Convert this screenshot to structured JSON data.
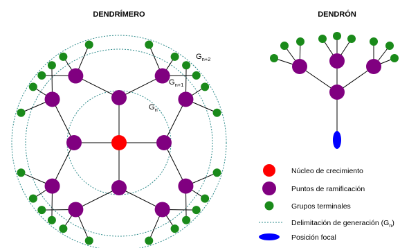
{
  "dendrimer": {
    "title": "DENDRÍMERO",
    "generations": [
      {
        "label": "G",
        "subscript": "n"
      },
      {
        "label": "G",
        "subscript": "n+1"
      },
      {
        "label": "G",
        "subscript": "n+2"
      }
    ]
  },
  "dendron": {
    "title": "DENDRÓN"
  },
  "legend": {
    "items": [
      {
        "label": "Núcleo de crecimiento",
        "symbol": "core",
        "color": "#ff0000"
      },
      {
        "label": "Puntos de ramificación",
        "symbol": "branch-point",
        "color": "#800080"
      },
      {
        "label": "Grupos terminales",
        "symbol": "terminal-group",
        "color": "#1a8a1a"
      },
      {
        "label": "Delimitación de generación (G",
        "subscript": "n",
        "suffix": ")",
        "symbol": "generation-boundary",
        "color": "#2e8b8b"
      },
      {
        "label": "Posición focal",
        "symbol": "focal-position",
        "color": "#0000ff"
      }
    ]
  },
  "colors": {
    "core": "#ff0000",
    "branch": "#800080",
    "terminal": "#1a8a1a",
    "boundary": "#2e8b8b",
    "focal": "#0000ff",
    "line": "#000000"
  }
}
